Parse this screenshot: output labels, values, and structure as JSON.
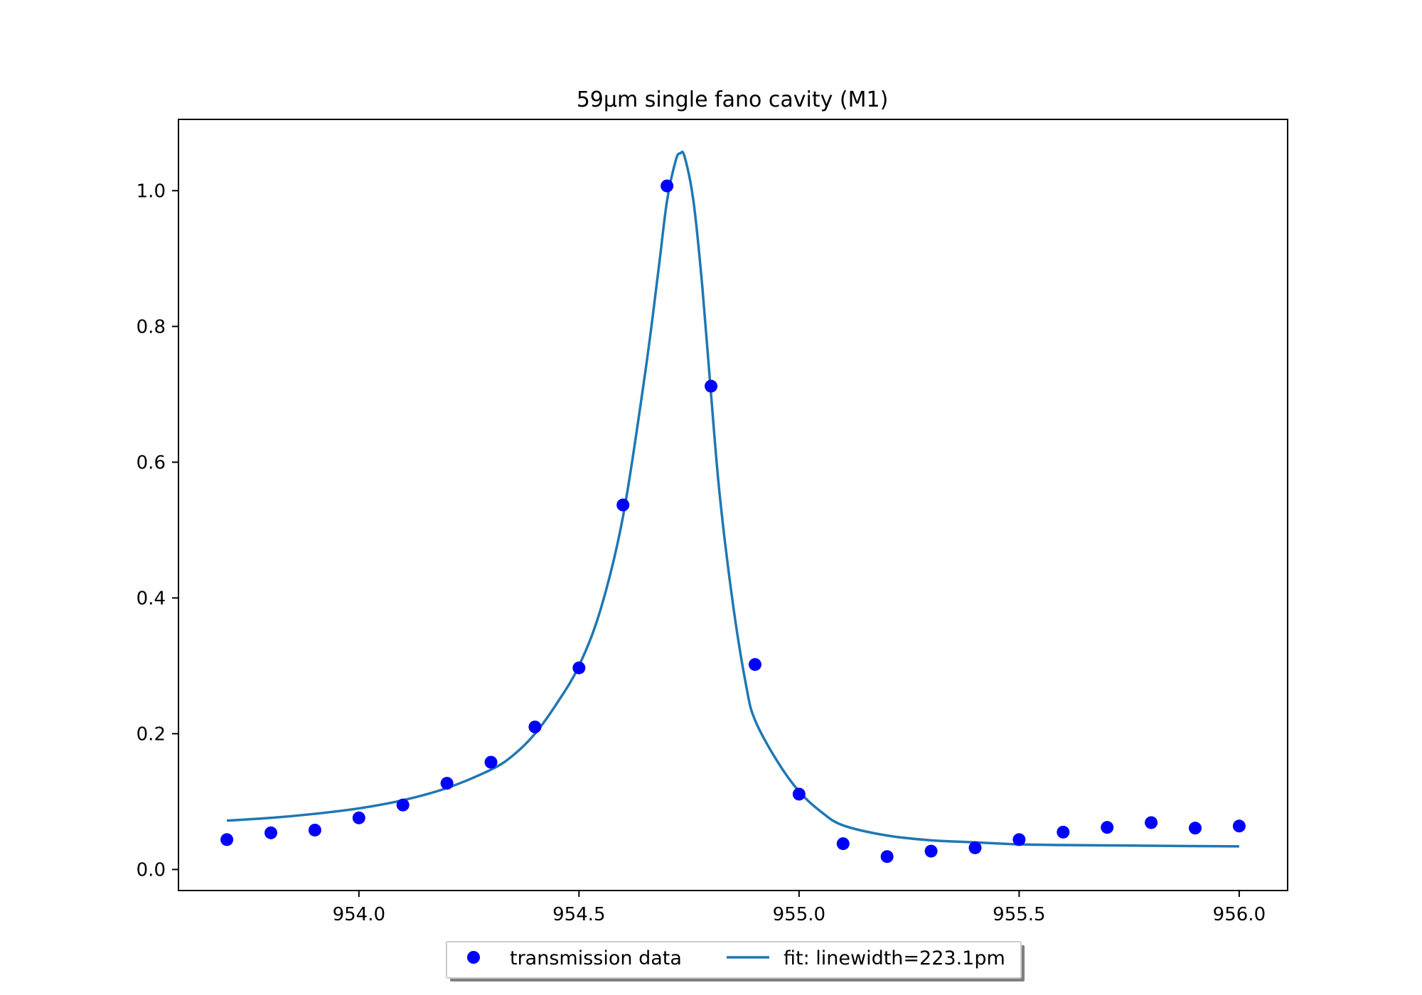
{
  "chart_data": {
    "type": "scatter",
    "title": "59µm single fano cavity (M1)",
    "xlabel": "",
    "ylabel": "",
    "xlim": [
      953.59,
      956.11
    ],
    "ylim": [
      -0.031,
      1.105
    ],
    "xticks": [
      954.0,
      954.5,
      955.0,
      955.5,
      956.0
    ],
    "xtick_labels": [
      "954.0",
      "954.5",
      "955.0",
      "955.5",
      "956.0"
    ],
    "yticks": [
      0.0,
      0.2,
      0.4,
      0.6,
      0.8,
      1.0
    ],
    "ytick_labels": [
      "0.0",
      "0.2",
      "0.4",
      "0.6",
      "0.8",
      "1.0"
    ],
    "grid": false,
    "legend_position": "bottom-center, below plot",
    "series": [
      {
        "name": "transmission data",
        "kind": "scatter",
        "color": "#0000ff",
        "x": [
          953.7,
          953.8,
          953.9,
          954.0,
          954.1,
          954.2,
          954.3,
          954.4,
          954.5,
          954.6,
          954.7,
          954.8,
          954.9,
          955.0,
          955.1,
          955.2,
          955.3,
          955.4,
          955.5,
          955.6,
          955.7,
          955.8,
          955.9,
          956.0
        ],
        "y": [
          0.044,
          0.054,
          0.058,
          0.076,
          0.095,
          0.127,
          0.158,
          0.21,
          0.297,
          0.537,
          1.007,
          0.712,
          0.302,
          0.111,
          0.038,
          0.019,
          0.027,
          0.032,
          0.044,
          0.055,
          0.062,
          0.069,
          0.061,
          0.064
        ]
      },
      {
        "name": "fit: linewidth=223.1pm",
        "kind": "line",
        "color": "#1f77b4",
        "x": [
          953.7,
          953.8,
          953.9,
          954.0,
          954.1,
          954.2,
          954.3,
          954.35,
          954.4,
          954.45,
          954.5,
          954.55,
          954.6,
          954.65,
          954.68,
          954.7,
          954.72,
          954.73,
          954.74,
          954.76,
          954.78,
          954.8,
          954.82,
          954.85,
          954.88,
          954.9,
          954.95,
          955.0,
          955.05,
          955.1,
          955.2,
          955.3,
          955.4,
          955.5,
          955.6,
          955.8,
          956.0
        ],
        "y": [
          0.072,
          0.076,
          0.082,
          0.09,
          0.102,
          0.12,
          0.147,
          0.168,
          0.2,
          0.245,
          0.3,
          0.385,
          0.52,
          0.73,
          0.88,
          0.985,
          1.045,
          1.055,
          1.05,
          0.985,
          0.86,
          0.7,
          0.55,
          0.39,
          0.27,
          0.22,
          0.16,
          0.115,
          0.085,
          0.065,
          0.05,
          0.043,
          0.04,
          0.037,
          0.036,
          0.035,
          0.034
        ]
      }
    ]
  }
}
